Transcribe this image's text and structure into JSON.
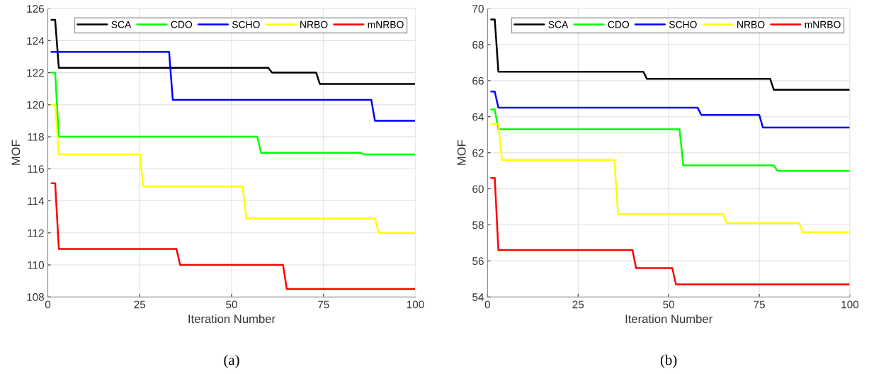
{
  "chart_data": [
    {
      "type": "line",
      "xlabel": "Iteration Number",
      "ylabel": "MOF",
      "xlim": [
        0,
        100
      ],
      "xticks": [
        0,
        25,
        50,
        75,
        100
      ],
      "ylim": [
        108,
        126
      ],
      "yticks": [
        108,
        110,
        112,
        114,
        116,
        118,
        120,
        122,
        124,
        126
      ],
      "grid": true,
      "legend": "top",
      "annotations": [
        "(a)"
      ],
      "series": [
        {
          "name": "SCA",
          "color": "#000000",
          "x": [
            1,
            2,
            3,
            60,
            61,
            73,
            74,
            100
          ],
          "values": [
            125.3,
            125.3,
            122.3,
            122.3,
            122.0,
            122.0,
            121.3,
            121.3
          ]
        },
        {
          "name": "CDO",
          "color": "#00ff00",
          "x": [
            1,
            2,
            3,
            57,
            58,
            85,
            86,
            100
          ],
          "values": [
            122.0,
            122.0,
            118.0,
            118.0,
            117.0,
            117.0,
            116.9,
            116.9
          ]
        },
        {
          "name": "SCHO",
          "color": "#0000ff",
          "x": [
            1,
            33,
            34,
            88,
            89,
            100
          ],
          "values": [
            123.3,
            123.3,
            120.3,
            120.3,
            119.0,
            119.0
          ]
        },
        {
          "name": "NRBO",
          "color": "#ffff00",
          "x": [
            1,
            2,
            3,
            25,
            26,
            53,
            54,
            89,
            90,
            100
          ],
          "values": [
            120.0,
            120.0,
            116.9,
            116.9,
            114.9,
            114.9,
            112.9,
            112.9,
            112.0,
            112.0
          ]
        },
        {
          "name": "mNRBO",
          "color": "#ff0000",
          "x": [
            1,
            2,
            3,
            35,
            36,
            64,
            65,
            100
          ],
          "values": [
            115.1,
            115.1,
            111.0,
            111.0,
            110.0,
            110.0,
            108.5,
            108.5
          ]
        }
      ]
    },
    {
      "type": "line",
      "xlabel": "Iteration Number",
      "ylabel": "MOF",
      "xlim": [
        0,
        100
      ],
      "xticks": [
        0,
        25,
        50,
        75,
        100
      ],
      "ylim": [
        54,
        70
      ],
      "yticks": [
        54,
        56,
        58,
        60,
        62,
        64,
        66,
        68,
        70
      ],
      "grid": true,
      "legend": "top",
      "annotations": [
        "(b)"
      ],
      "series": [
        {
          "name": "SCA",
          "color": "#000000",
          "x": [
            1,
            2,
            3,
            43,
            44,
            78,
            79,
            100
          ],
          "values": [
            69.4,
            69.4,
            66.5,
            66.5,
            66.1,
            66.1,
            65.5,
            65.5
          ]
        },
        {
          "name": "CDO",
          "color": "#00ff00",
          "x": [
            1,
            2,
            3,
            53,
            54,
            79,
            80,
            100
          ],
          "values": [
            64.4,
            64.4,
            63.3,
            63.3,
            61.3,
            61.3,
            61.0,
            61.0
          ]
        },
        {
          "name": "SCHO",
          "color": "#0000ff",
          "x": [
            1,
            2,
            3,
            58,
            59,
            75,
            76,
            100
          ],
          "values": [
            65.4,
            65.4,
            64.5,
            64.5,
            64.1,
            64.1,
            63.4,
            63.4
          ]
        },
        {
          "name": "NRBO",
          "color": "#ffff00",
          "x": [
            1,
            3,
            4,
            35,
            36,
            65,
            66,
            86,
            87,
            100
          ],
          "values": [
            63.6,
            63.6,
            61.6,
            61.6,
            58.6,
            58.6,
            58.1,
            58.1,
            57.6,
            57.6
          ]
        },
        {
          "name": "mNRBO",
          "color": "#ff0000",
          "x": [
            1,
            2,
            3,
            40,
            41,
            51,
            52,
            100
          ],
          "values": [
            60.6,
            60.6,
            56.6,
            56.6,
            55.6,
            55.6,
            54.7,
            54.7
          ]
        }
      ]
    }
  ]
}
